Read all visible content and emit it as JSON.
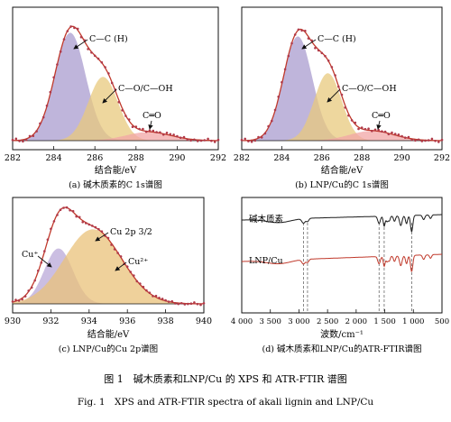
{
  "chart_data": [
    {
      "type": "line",
      "panel": "(a)",
      "caption": "(a) 碱木质素的C 1s谱图",
      "xlabel": "结合能/eV",
      "xlim": [
        282,
        292
      ],
      "xticks": [
        "282",
        "284",
        "286",
        "288",
        "290",
        "292"
      ],
      "x_axis_reversed": false,
      "components": [
        {
          "name": "C—C (H)",
          "center": 284.8,
          "sigma": 0.75,
          "height": 0.88,
          "color": "#a99ccf"
        },
        {
          "name": "C—O/C—OH",
          "center": 286.4,
          "sigma": 0.72,
          "height": 0.52,
          "color": "#e8c97e"
        },
        {
          "name": "C═O",
          "center": 288.6,
          "sigma": 1.1,
          "height": 0.07,
          "color": "#f2a6a6"
        }
      ],
      "annotations": [
        "C—C (H)",
        "C—O/C—OH",
        "C═O"
      ],
      "envelope_color": "#c0392b",
      "data_marker_color": "#b03a4a",
      "grid": false
    },
    {
      "type": "line",
      "panel": "(b)",
      "caption": "(b) LNP/Cu的C 1s谱图",
      "xlabel": "结合能/eV",
      "xlim": [
        282,
        292
      ],
      "xticks": [
        "282",
        "284",
        "286",
        "288",
        "290",
        "292"
      ],
      "x_axis_reversed": false,
      "components": [
        {
          "name": "C—C (H)",
          "center": 284.8,
          "sigma": 0.72,
          "height": 0.85,
          "color": "#a99ccf"
        },
        {
          "name": "C—O/C—OH",
          "center": 286.3,
          "sigma": 0.68,
          "height": 0.55,
          "color": "#e8c97e"
        },
        {
          "name": "C═O",
          "center": 288.5,
          "sigma": 1.1,
          "height": 0.08,
          "color": "#f2a6a6"
        }
      ],
      "annotations": [
        "C—C (H)",
        "C—O/C—OH",
        "C═O"
      ],
      "envelope_color": "#c0392b",
      "data_marker_color": "#b03a4a",
      "grid": false
    },
    {
      "type": "line",
      "panel": "(c)",
      "caption": "(c) LNP/Cu的Cu 2p谱图",
      "xlabel": "结合能/eV",
      "xlim": [
        930,
        940
      ],
      "xticks": [
        "930",
        "932",
        "934",
        "936",
        "938",
        "940"
      ],
      "x_axis_reversed": false,
      "components": [
        {
          "name": "Cu⁺",
          "center": 932.4,
          "sigma": 0.75,
          "height": 0.58,
          "color": "#b9a8d8"
        },
        {
          "name": "Cu²⁺",
          "center": 934.2,
          "sigma": 1.5,
          "height": 0.78,
          "color": "#e9c27a"
        }
      ],
      "annotations": [
        "Cu 2p 3/2",
        "Cu⁺",
        "Cu²⁺"
      ],
      "envelope_color": "#c0392b",
      "data_marker_color": "#b03a4a",
      "grid": false
    },
    {
      "type": "line",
      "panel": "(d)",
      "caption": "(d) 碱木质素和LNP/Cu的ATR-FTIR谱图",
      "xlabel": "波数/cm⁻¹",
      "xlim": [
        4000,
        500
      ],
      "xticks": [
        "4 000",
        "3 500",
        "3 000",
        "2 500",
        "2 000",
        "1 500",
        "1 000",
        "500"
      ],
      "x_axis_reversed": true,
      "series": [
        {
          "name": "碱木质素",
          "color": "#1a1a1a"
        },
        {
          "name": "LNP/Cu",
          "color": "#c0392b"
        }
      ],
      "reference_lines_wavenumber": [
        2920,
        2850,
        1600,
        1510,
        1030
      ],
      "grid": false
    }
  ],
  "figure_caption_cn": "图 1　碱木质素和LNP/Cu 的 XPS 和 ATR-FTIR 谱图",
  "figure_caption_en": "Fig. 1　XPS and ATR-FTIR spectra of akali lignin and LNP/Cu"
}
